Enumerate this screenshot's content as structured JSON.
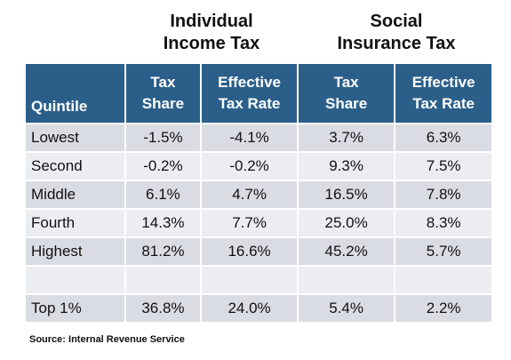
{
  "group_headers": [
    [
      "Individual",
      "Income Tax"
    ],
    [
      "Social",
      "Insurance Tax"
    ]
  ],
  "table": {
    "columns": [
      [
        "Quintile"
      ],
      [
        "Tax",
        "Share"
      ],
      [
        "Effective",
        "Tax Rate"
      ],
      [
        "Tax",
        "Share"
      ],
      [
        "Effective",
        "Tax Rate"
      ]
    ],
    "rows": [
      [
        "Lowest",
        "-1.5%",
        "-4.1%",
        "3.7%",
        "6.3%"
      ],
      [
        "Second",
        "-0.2%",
        "-0.2%",
        "9.3%",
        "7.5%"
      ],
      [
        "Middle",
        "6.1%",
        "4.7%",
        "16.5%",
        "7.8%"
      ],
      [
        "Fourth",
        "14.3%",
        "7.7%",
        "25.0%",
        "8.3%"
      ],
      [
        "Highest",
        "81.2%",
        "16.6%",
        "45.2%",
        "5.7%"
      ],
      [
        "Top 1%",
        "36.8%",
        "24.0%",
        "5.4%",
        "2.2%"
      ]
    ]
  },
  "source": "Source: Internal Revenue Service"
}
